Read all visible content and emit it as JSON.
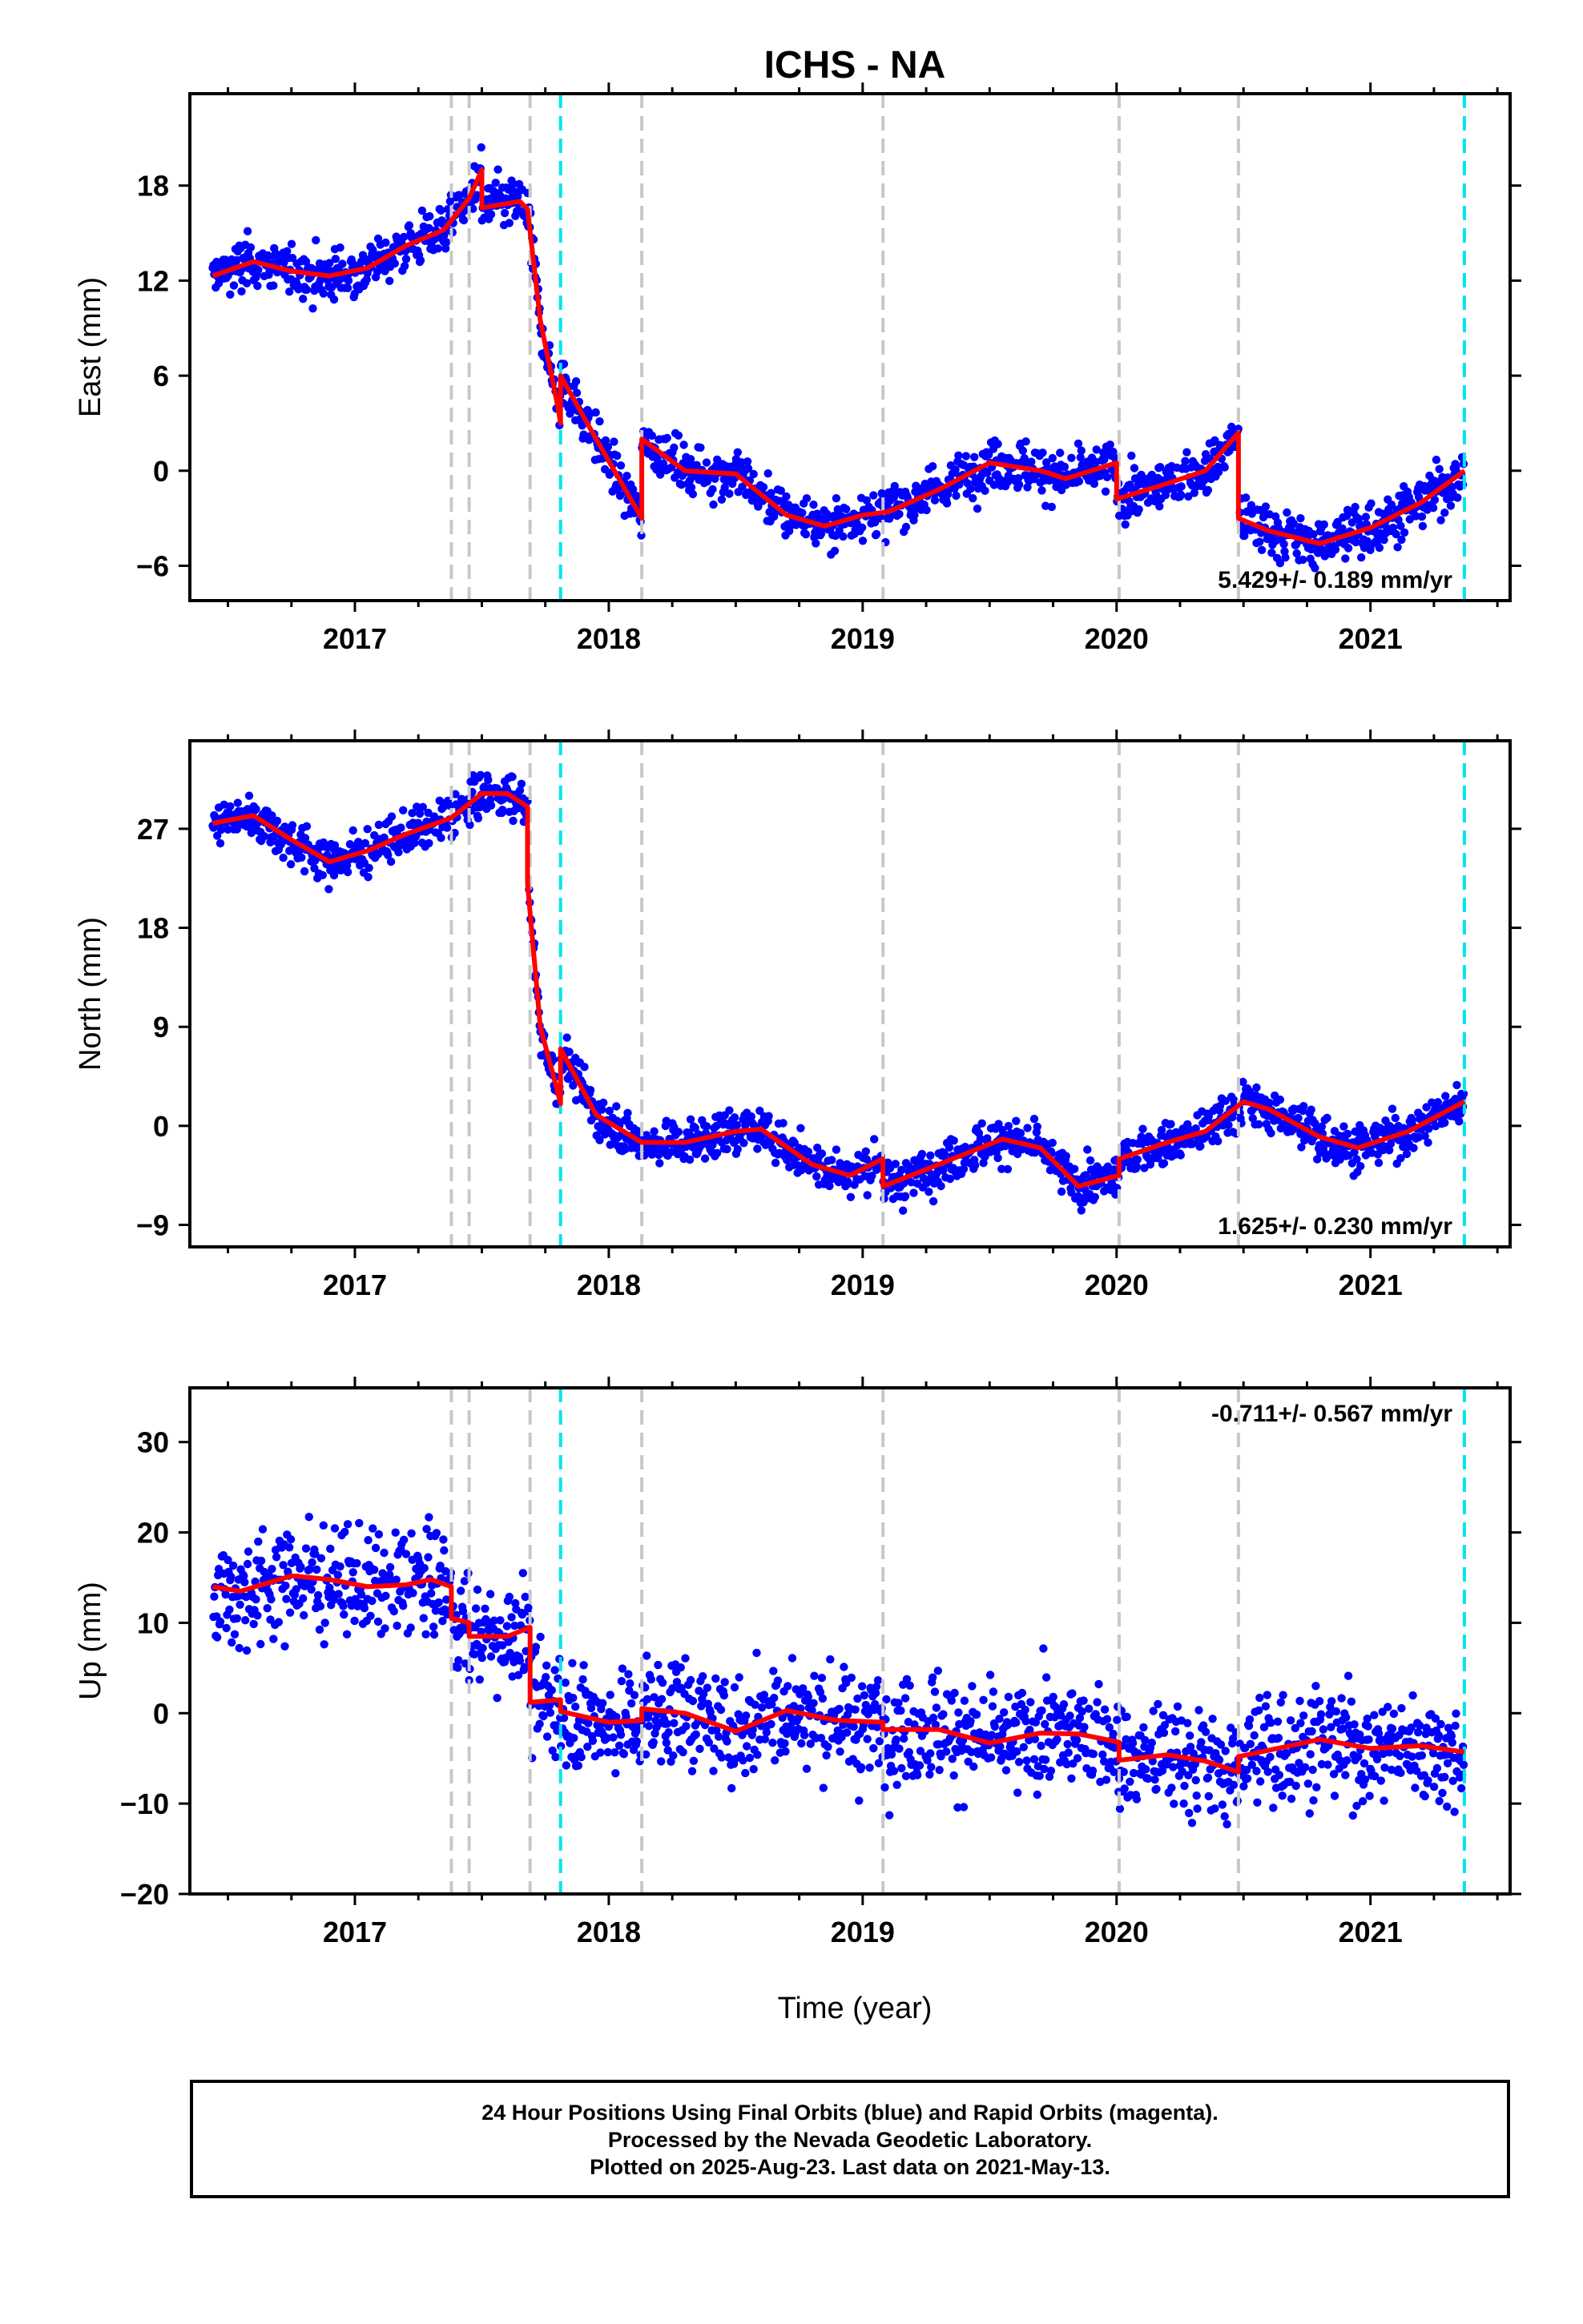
{
  "figure": {
    "title": "ICHS - NA",
    "xlabel": "Time (year)",
    "footer": [
      "24 Hour Positions Using Final Orbits (blue) and Rapid Orbits (magenta).",
      "Processed by the Nevada Geodetic Laboratory.",
      "Plotted on 2025-Aug-23. Last data on 2021-May-13."
    ]
  },
  "colors": {
    "data_points": "#0000ff",
    "model_line": "#ff0000",
    "equipment_change": "#c8c8c8",
    "earthquake": "#00e5ee",
    "frame": "#000000"
  },
  "chart_data": [
    {
      "type": "scatter",
      "ylabel": "East (mm)",
      "xlim": [
        2016.35,
        2021.55
      ],
      "ylim": [
        -8.2,
        23.8
      ],
      "xticks": [
        2017,
        2018,
        2019,
        2020,
        2021
      ],
      "yticks": [
        -6,
        0,
        6,
        12,
        18
      ],
      "ytick_labels": [
        "−6",
        "0",
        "6",
        "12",
        "18"
      ],
      "rate_label": "5.429+/- 0.189 mm/yr",
      "rate_position": "bottom-right",
      "model": [
        [
          2016.44,
          12.3
        ],
        [
          2016.6,
          13.2
        ],
        [
          2016.75,
          12.6
        ],
        [
          2016.9,
          12.3
        ],
        [
          2017.05,
          12.8
        ],
        [
          2017.2,
          14.2
        ],
        [
          2017.35,
          15.2
        ],
        [
          2017.45,
          17.2
        ],
        [
          2017.5,
          19.0
        ],
        [
          2017.5,
          16.6
        ],
        [
          2017.65,
          17.0
        ],
        [
          2017.68,
          16.5
        ],
        [
          2017.68,
          16.5
        ],
        [
          2017.73,
          9.5
        ],
        [
          2017.8,
          4.0
        ],
        [
          2017.81,
          3.0
        ],
        [
          2017.81,
          6.0
        ],
        [
          2017.95,
          2.0
        ],
        [
          2018.13,
          -3.0
        ],
        [
          2018.13,
          2.0
        ],
        [
          2018.3,
          0.0
        ],
        [
          2018.5,
          -0.2
        ],
        [
          2018.7,
          -2.8
        ],
        [
          2018.85,
          -3.5
        ],
        [
          2019.0,
          -2.8
        ],
        [
          2019.1,
          -2.6
        ],
        [
          2019.3,
          -1.2
        ],
        [
          2019.5,
          0.5
        ],
        [
          2019.7,
          0.0
        ],
        [
          2019.8,
          -0.5
        ],
        [
          2020.0,
          0.5
        ],
        [
          2020.0,
          -1.8
        ],
        [
          2020.2,
          -0.8
        ],
        [
          2020.35,
          0.0
        ],
        [
          2020.48,
          2.4
        ],
        [
          2020.48,
          -3.0
        ],
        [
          2020.6,
          -3.8
        ],
        [
          2020.8,
          -4.6
        ],
        [
          2021.0,
          -3.6
        ],
        [
          2021.2,
          -2.0
        ],
        [
          2021.37,
          0.0
        ]
      ],
      "steps": [
        {
          "x": 2017.38,
          "kind": "equipment"
        },
        {
          "x": 2017.45,
          "kind": "equipment"
        },
        {
          "x": 2017.69,
          "kind": "equipment"
        },
        {
          "x": 2017.81,
          "kind": "earthquake"
        },
        {
          "x": 2018.13,
          "kind": "equipment"
        },
        {
          "x": 2019.08,
          "kind": "equipment"
        },
        {
          "x": 2020.01,
          "kind": "equipment"
        },
        {
          "x": 2020.48,
          "kind": "equipment"
        },
        {
          "x": 2021.37,
          "kind": "earthquake"
        }
      ],
      "scatter_spread": 1.1
    },
    {
      "type": "scatter",
      "ylabel": "North (mm)",
      "xlim": [
        2016.35,
        2021.55
      ],
      "ylim": [
        -11.0,
        35.0
      ],
      "xticks": [
        2017,
        2018,
        2019,
        2020,
        2021
      ],
      "yticks": [
        -9,
        0,
        9,
        18,
        27
      ],
      "ytick_labels": [
        "−9",
        "0",
        "9",
        "18",
        "27"
      ],
      "rate_label": "1.625+/- 0.230 mm/yr",
      "rate_position": "bottom-right",
      "model": [
        [
          2016.44,
          27.5
        ],
        [
          2016.6,
          28.2
        ],
        [
          2016.75,
          26.0
        ],
        [
          2016.9,
          24.0
        ],
        [
          2017.05,
          25.0
        ],
        [
          2017.2,
          26.5
        ],
        [
          2017.38,
          28.0
        ],
        [
          2017.5,
          30.2
        ],
        [
          2017.6,
          30.2
        ],
        [
          2017.68,
          29.0
        ],
        [
          2017.68,
          22.0
        ],
        [
          2017.73,
          9.0
        ],
        [
          2017.8,
          3.0
        ],
        [
          2017.81,
          2.0
        ],
        [
          2017.81,
          7.0
        ],
        [
          2017.95,
          1.0
        ],
        [
          2018.13,
          -1.5
        ],
        [
          2018.3,
          -1.5
        ],
        [
          2018.5,
          -0.5
        ],
        [
          2018.6,
          -0.3
        ],
        [
          2018.8,
          -3.5
        ],
        [
          2018.95,
          -4.5
        ],
        [
          2019.08,
          -3.0
        ],
        [
          2019.08,
          -5.5
        ],
        [
          2019.3,
          -3.5
        ],
        [
          2019.55,
          -1.2
        ],
        [
          2019.7,
          -2.0
        ],
        [
          2019.85,
          -5.5
        ],
        [
          2020.01,
          -4.5
        ],
        [
          2020.01,
          -3.0
        ],
        [
          2020.2,
          -1.5
        ],
        [
          2020.35,
          -0.5
        ],
        [
          2020.5,
          2.2
        ],
        [
          2020.6,
          1.5
        ],
        [
          2020.8,
          -1.0
        ],
        [
          2020.95,
          -2.0
        ],
        [
          2021.15,
          -0.5
        ],
        [
          2021.37,
          2.2
        ]
      ],
      "steps": [
        {
          "x": 2017.38,
          "kind": "equipment"
        },
        {
          "x": 2017.45,
          "kind": "equipment"
        },
        {
          "x": 2017.69,
          "kind": "equipment"
        },
        {
          "x": 2017.81,
          "kind": "earthquake"
        },
        {
          "x": 2018.13,
          "kind": "equipment"
        },
        {
          "x": 2019.08,
          "kind": "equipment"
        },
        {
          "x": 2020.01,
          "kind": "equipment"
        },
        {
          "x": 2020.48,
          "kind": "equipment"
        },
        {
          "x": 2021.37,
          "kind": "earthquake"
        }
      ],
      "scatter_spread": 1.4
    },
    {
      "type": "scatter",
      "ylabel": "Up (mm)",
      "xlim": [
        2016.35,
        2021.55
      ],
      "ylim": [
        -20.0,
        36.0
      ],
      "xticks": [
        2017,
        2018,
        2019,
        2020,
        2021
      ],
      "yticks": [
        -20,
        -10,
        0,
        10,
        20,
        30
      ],
      "ytick_labels": [
        "−20",
        "−10",
        "0",
        "10",
        "20",
        "30"
      ],
      "rate_label": "-0.711+/- 0.567 mm/yr",
      "rate_position": "top-right",
      "model": [
        [
          2016.44,
          14.0
        ],
        [
          2016.55,
          13.5
        ],
        [
          2016.75,
          15.2
        ],
        [
          2016.9,
          14.8
        ],
        [
          2017.05,
          14.0
        ],
        [
          2017.2,
          14.2
        ],
        [
          2017.3,
          14.8
        ],
        [
          2017.38,
          14.0
        ],
        [
          2017.38,
          10.5
        ],
        [
          2017.45,
          10.0
        ],
        [
          2017.45,
          8.5
        ],
        [
          2017.6,
          8.5
        ],
        [
          2017.69,
          9.5
        ],
        [
          2017.69,
          1.2
        ],
        [
          2017.81,
          1.5
        ],
        [
          2017.81,
          0.2
        ],
        [
          2018.0,
          -1.0
        ],
        [
          2018.13,
          -0.8
        ],
        [
          2018.13,
          0.5
        ],
        [
          2018.3,
          0.0
        ],
        [
          2018.5,
          -2.0
        ],
        [
          2018.7,
          0.3
        ],
        [
          2018.9,
          -0.8
        ],
        [
          2019.08,
          -1.0
        ],
        [
          2019.08,
          -1.8
        ],
        [
          2019.3,
          -1.8
        ],
        [
          2019.5,
          -3.3
        ],
        [
          2019.7,
          -2.2
        ],
        [
          2019.85,
          -2.3
        ],
        [
          2020.01,
          -3.2
        ],
        [
          2020.01,
          -5.2
        ],
        [
          2020.2,
          -4.6
        ],
        [
          2020.35,
          -5.3
        ],
        [
          2020.48,
          -6.5
        ],
        [
          2020.48,
          -4.8
        ],
        [
          2020.65,
          -3.8
        ],
        [
          2020.8,
          -2.9
        ],
        [
          2021.0,
          -3.9
        ],
        [
          2021.2,
          -3.6
        ],
        [
          2021.37,
          -4.3
        ]
      ],
      "steps": [
        {
          "x": 2017.38,
          "kind": "equipment"
        },
        {
          "x": 2017.45,
          "kind": "equipment"
        },
        {
          "x": 2017.69,
          "kind": "equipment"
        },
        {
          "x": 2017.81,
          "kind": "earthquake"
        },
        {
          "x": 2018.13,
          "kind": "equipment"
        },
        {
          "x": 2019.08,
          "kind": "equipment"
        },
        {
          "x": 2020.01,
          "kind": "equipment"
        },
        {
          "x": 2020.48,
          "kind": "equipment"
        },
        {
          "x": 2021.37,
          "kind": "earthquake"
        }
      ],
      "scatter_spread": 4.2
    }
  ]
}
